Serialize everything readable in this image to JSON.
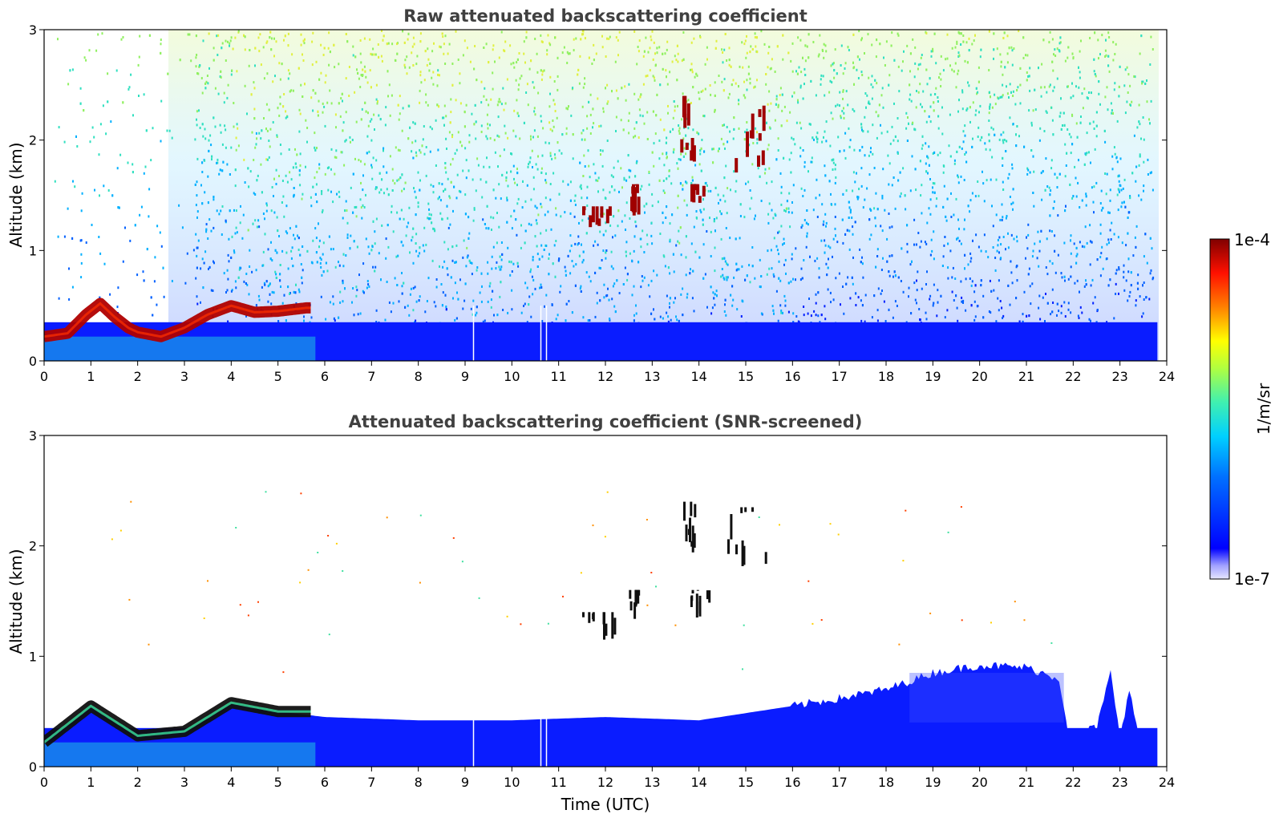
{
  "chart_data": [
    {
      "type": "heatmap",
      "title": "Raw attenuated backscattering coefficient",
      "xlabel": "",
      "ylabel": "Altitude (km)",
      "xlim": [
        0,
        24
      ],
      "ylim": [
        0,
        3
      ],
      "x_ticks": [
        "0",
        "1",
        "2",
        "3",
        "4",
        "5",
        "6",
        "7",
        "8",
        "9",
        "10",
        "11",
        "12",
        "13",
        "14",
        "15",
        "16",
        "17",
        "18",
        "19",
        "20",
        "21",
        "22",
        "23",
        "24"
      ],
      "y_ticks": [
        "0",
        "1",
        "2",
        "3"
      ],
      "boundary_layer_top_km": [
        [
          0.0,
          0.22
        ],
        [
          0.5,
          0.25
        ],
        [
          0.9,
          0.42
        ],
        [
          1.2,
          0.52
        ],
        [
          1.5,
          0.4
        ],
        [
          1.8,
          0.3
        ],
        [
          2.0,
          0.26
        ],
        [
          2.5,
          0.22
        ],
        [
          3.0,
          0.3
        ],
        [
          3.5,
          0.42
        ],
        [
          4.0,
          0.5
        ],
        [
          4.5,
          0.44
        ],
        [
          5.0,
          0.45
        ],
        [
          5.6,
          0.48
        ]
      ],
      "cloud_patches": [
        {
          "time_start": 13.6,
          "time_end": 13.9,
          "alt_min_km": 1.8,
          "alt_max_km": 2.4
        },
        {
          "time_start": 14.6,
          "time_end": 15.5,
          "alt_min_km": 1.7,
          "alt_max_km": 2.35
        },
        {
          "time_start": 11.5,
          "time_end": 12.2,
          "alt_min_km": 1.15,
          "alt_max_km": 1.4
        },
        {
          "time_start": 12.5,
          "time_end": 12.7,
          "alt_min_km": 1.3,
          "alt_max_km": 1.6
        },
        {
          "time_start": 13.8,
          "time_end": 14.2,
          "alt_min_km": 1.35,
          "alt_max_km": 1.6
        }
      ]
    },
    {
      "type": "heatmap",
      "title": "Attenuated backscattering coefficient (SNR-screened)",
      "xlabel": "Time (UTC)",
      "ylabel": "Altitude (km)",
      "xlim": [
        0,
        24
      ],
      "ylim": [
        0,
        3
      ],
      "x_ticks": [
        "0",
        "1",
        "2",
        "3",
        "4",
        "5",
        "6",
        "7",
        "8",
        "9",
        "10",
        "11",
        "12",
        "13",
        "14",
        "15",
        "16",
        "17",
        "18",
        "19",
        "20",
        "21",
        "22",
        "23",
        "24"
      ],
      "y_ticks": [
        "0",
        "1",
        "2",
        "3"
      ],
      "screened_layer_top_km": [
        [
          0.0,
          0.22
        ],
        [
          1.0,
          0.55
        ],
        [
          2.0,
          0.28
        ],
        [
          3.0,
          0.32
        ],
        [
          4.0,
          0.58
        ],
        [
          5.0,
          0.5
        ],
        [
          6.0,
          0.45
        ],
        [
          8.0,
          0.42
        ],
        [
          10.0,
          0.42
        ],
        [
          12.0,
          0.45
        ],
        [
          14.0,
          0.42
        ],
        [
          16.0,
          0.55
        ],
        [
          17.0,
          0.62
        ],
        [
          18.0,
          0.7
        ],
        [
          19.0,
          0.85
        ],
        [
          20.0,
          0.92
        ],
        [
          21.0,
          0.9
        ],
        [
          21.7,
          0.8
        ],
        [
          21.9,
          0.3
        ],
        [
          22.5,
          0.35
        ],
        [
          22.8,
          0.85
        ],
        [
          23.0,
          0.3
        ],
        [
          23.2,
          0.68
        ],
        [
          23.4,
          0.3
        ],
        [
          23.8,
          0.28
        ]
      ]
    }
  ],
  "colorbar": {
    "label": "1/m/sr",
    "max_label": "1e-4",
    "min_label": "1e-7",
    "scale": "log",
    "colors": [
      "#e6e6ff",
      "#0000ff",
      "#00c0ff",
      "#40e0a0",
      "#ffff00",
      "#ff8000",
      "#ff0000",
      "#800000"
    ]
  }
}
